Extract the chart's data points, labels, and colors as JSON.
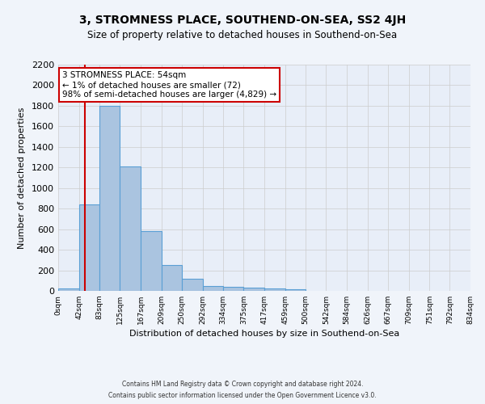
{
  "title": "3, STROMNESS PLACE, SOUTHEND-ON-SEA, SS2 4JH",
  "subtitle": "Size of property relative to detached houses in Southend-on-Sea",
  "xlabel": "Distribution of detached houses by size in Southend-on-Sea",
  "ylabel": "Number of detached properties",
  "footnote1": "Contains HM Land Registry data © Crown copyright and database right 2024.",
  "footnote2": "Contains public sector information licensed under the Open Government Licence v3.0.",
  "annotation_line1": "3 STROMNESS PLACE: 54sqm",
  "annotation_line2": "← 1% of detached houses are smaller (72)",
  "annotation_line3": "98% of semi-detached houses are larger (4,829) →",
  "bar_left_edges": [
    0,
    42,
    83,
    125,
    167,
    209,
    250,
    292,
    334,
    375,
    417,
    459,
    500,
    542,
    584,
    626,
    667,
    709,
    751,
    792
  ],
  "bar_widths": [
    42,
    41,
    42,
    42,
    42,
    41,
    42,
    42,
    41,
    42,
    42,
    41,
    42,
    42,
    42,
    41,
    42,
    42,
    41,
    42
  ],
  "bar_heights": [
    25,
    840,
    1800,
    1210,
    580,
    255,
    120,
    45,
    38,
    30,
    20,
    12,
    0,
    0,
    0,
    0,
    0,
    0,
    0,
    0
  ],
  "bar_color": "#aac4e0",
  "bar_edge_color": "#5a9fd4",
  "property_line_x": 54,
  "property_line_color": "#cc0000",
  "ylim": [
    0,
    2200
  ],
  "yticks": [
    0,
    200,
    400,
    600,
    800,
    1000,
    1200,
    1400,
    1600,
    1800,
    2000,
    2200
  ],
  "xtick_labels": [
    "0sqm",
    "42sqm",
    "83sqm",
    "125sqm",
    "167sqm",
    "209sqm",
    "250sqm",
    "292sqm",
    "334sqm",
    "375sqm",
    "417sqm",
    "459sqm",
    "500sqm",
    "542sqm",
    "584sqm",
    "626sqm",
    "667sqm",
    "709sqm",
    "751sqm",
    "792sqm",
    "834sqm"
  ],
  "xtick_positions": [
    0,
    42,
    83,
    125,
    167,
    209,
    250,
    292,
    334,
    375,
    417,
    459,
    500,
    542,
    584,
    626,
    667,
    709,
    751,
    792,
    834
  ],
  "grid_color": "#cccccc",
  "fig_background_color": "#f0f4fa",
  "ax_background_color": "#e8eef8",
  "annotation_box_color": "#ffffff",
  "annotation_border_color": "#cc0000",
  "title_fontsize": 10,
  "subtitle_fontsize": 8.5,
  "xlabel_fontsize": 8,
  "ylabel_fontsize": 8,
  "xtick_fontsize": 6.5,
  "ytick_fontsize": 8,
  "footnote_fontsize": 5.5
}
